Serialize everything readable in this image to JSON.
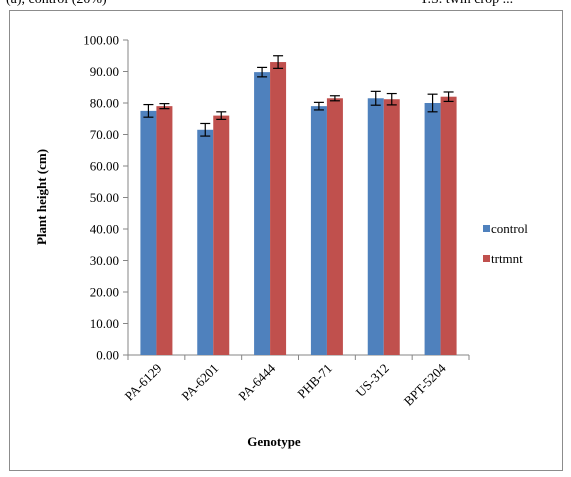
{
  "page": {
    "top_left_text": "(a), control (20%)",
    "top_right_text": "T.S. twin crop ..."
  },
  "chart_data": {
    "type": "bar",
    "title": "",
    "xlabel": "Genotype",
    "ylabel": "Plant height (cm)",
    "ylim": [
      0,
      100
    ],
    "yticks": [
      "0.00",
      "10.00",
      "20.00",
      "30.00",
      "40.00",
      "50.00",
      "60.00",
      "70.00",
      "80.00",
      "90.00",
      "100.00"
    ],
    "categories": [
      "PA-6129",
      "PA-6201",
      "PA-6444",
      "PHB-71",
      "US-312",
      "BPT-5204"
    ],
    "series": [
      {
        "name": "control",
        "color": "#4f81bd",
        "values": [
          77.5,
          71.5,
          89.8,
          79.0,
          81.5,
          80.0
        ],
        "errors": [
          2.0,
          2.0,
          1.5,
          1.2,
          2.2,
          2.8
        ]
      },
      {
        "name": "trtmnt",
        "color": "#c0504d",
        "values": [
          79.0,
          76.0,
          93.0,
          81.5,
          81.2,
          82.0
        ],
        "errors": [
          0.8,
          1.2,
          2.0,
          0.8,
          1.8,
          1.5
        ]
      }
    ],
    "grid": false,
    "legend_position": "right"
  }
}
